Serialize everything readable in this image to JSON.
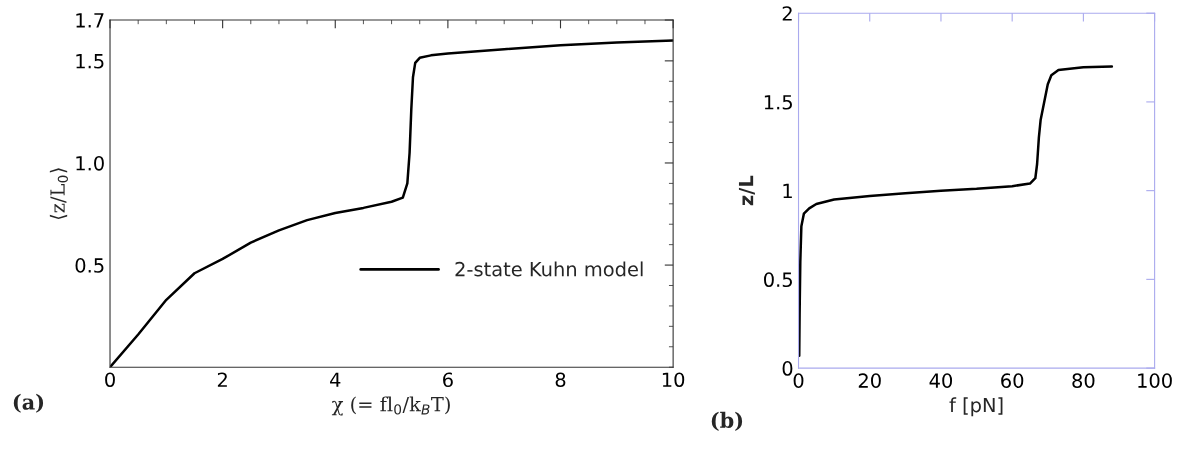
{
  "chart_data": [
    {
      "type": "line",
      "xlabel": "χ (= fl$_{0}$/k$_{B}$T)",
      "ylabel": "⟨z/L$_{0}$⟩",
      "annotations": [
        "(a)"
      ],
      "xlim": [
        0,
        10
      ],
      "ylim": [
        0,
        1.7
      ],
      "xticks": [
        0,
        2,
        4,
        6,
        8,
        10
      ],
      "yticks": [
        0.5,
        {
          "value": 1,
          "label": "1.0"
        },
        1.5,
        1.7
      ],
      "legend": "bottom right",
      "grid": false,
      "series": [
        {
          "name": "2-state Kuhn model",
          "color": "#000000",
          "x": [
            0,
            0.5,
            1,
            1.5,
            2,
            2.5,
            3,
            3.5,
            4,
            4.5,
            5,
            5.2,
            5.28,
            5.32,
            5.35,
            5.38,
            5.42,
            5.5,
            5.7,
            6,
            7,
            8,
            9,
            10
          ],
          "values": [
            0,
            0.16,
            0.33,
            0.46,
            0.53,
            0.61,
            0.67,
            0.72,
            0.755,
            0.78,
            0.81,
            0.83,
            0.9,
            1.05,
            1.26,
            1.42,
            1.49,
            1.515,
            1.527,
            1.536,
            1.557,
            1.577,
            1.59,
            1.6
          ]
        }
      ]
    },
    {
      "type": "line",
      "xlabel": "f [pN]",
      "ylabel": "z/L",
      "annotations": [
        "(b)"
      ],
      "xlim": [
        0,
        100
      ],
      "ylim": [
        0,
        2
      ],
      "xticks": [
        0,
        20,
        40,
        60,
        80,
        100
      ],
      "yticks": [
        0,
        0.5,
        1,
        1.5,
        2
      ],
      "grid": false,
      "series": [
        {
          "color": "#000000",
          "x": [
            0.2,
            0.3,
            0.5,
            0.8,
            1.5,
            3,
            5,
            10,
            20,
            30,
            40,
            50,
            60,
            65,
            66.5,
            67,
            67.5,
            68,
            69,
            70,
            71,
            73,
            80,
            88
          ],
          "values": [
            0.07,
            0.3,
            0.6,
            0.8,
            0.87,
            0.9,
            0.925,
            0.95,
            0.97,
            0.985,
            1.0,
            1.01,
            1.025,
            1.04,
            1.07,
            1.15,
            1.3,
            1.4,
            1.5,
            1.6,
            1.65,
            1.68,
            1.695,
            1.7
          ]
        }
      ]
    }
  ]
}
